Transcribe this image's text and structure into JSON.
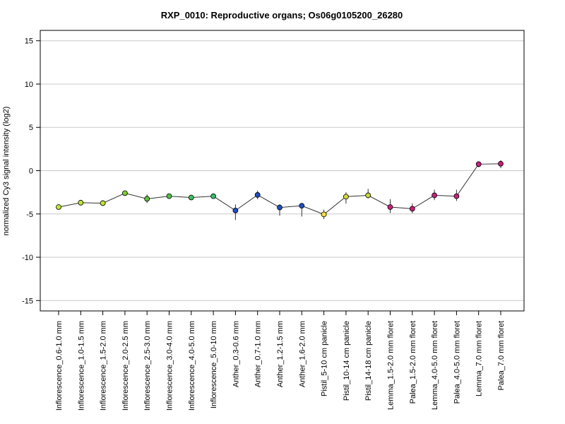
{
  "chart_data": {
    "type": "line",
    "title": "RXP_0010: Reproductive organs; Os06g0105200_26280",
    "xlabel": "",
    "ylabel": "normalized Cy3 signal intensity (log2)",
    "ylim": [
      -16.2,
      16.2
    ],
    "yticks": [
      -15,
      -10,
      -5,
      0,
      5,
      10,
      15
    ],
    "grid": true,
    "categories": [
      "Inflorescence_0.6-1.0 mm",
      "Inflorescence_1.0-1.5 mm",
      "Inflorescence_1.5-2.0 mm",
      "Inflorescence_2.0-2.5 mm",
      "Inflorescence_2.5-3.0 mm",
      "Inflorescence_3.0-4.0 mm",
      "Inflorescence_4.0-5.0 mm",
      "Inflorescence_5.0-10 mm",
      "Anther_0.3-0.6 mm",
      "Anther_0.7-1.0 mm",
      "Anther_1.2-1.5 mm",
      "Anther_1.6-2.0 mm",
      "Pistil_5-10 cm panicle",
      "Pistil_10-14 cm panicle",
      "Pistil_14-18 cm panicle",
      "Lemma_1.5-2.0 mm floret",
      "Palea_1.5-2.0 mm floret",
      "Lemma_4.0-5.0 mm floret",
      "Palea_4.0-5.0 mm floret",
      "Lemma_7.0 mm floret",
      "Palea_7.0 mm floret"
    ],
    "series": [
      {
        "values": [
          -4.2,
          -3.7,
          -3.75,
          -2.6,
          -3.25,
          -2.95,
          -3.1,
          -2.95,
          -4.6,
          -2.8,
          -4.25,
          -4.05,
          -5.05,
          -3.0,
          -2.85,
          -4.2,
          -4.4,
          -2.85,
          -2.95,
          0.75,
          0.8
        ],
        "error_low": [
          -4.2,
          -3.7,
          -3.75,
          -2.6,
          -3.75,
          -2.95,
          -3.1,
          -2.95,
          -5.7,
          -3.3,
          -5.2,
          -5.3,
          -5.6,
          -3.8,
          -3.2,
          -4.9,
          -4.9,
          -3.4,
          -3.5,
          0.4,
          0.3
        ],
        "error_high": [
          -4.2,
          -3.7,
          -3.75,
          -2.6,
          -2.75,
          -2.95,
          -3.1,
          -2.95,
          -3.9,
          -2.3,
          -3.9,
          -3.85,
          -4.5,
          -2.5,
          -2.1,
          -3.3,
          -3.8,
          -2.2,
          -2.2,
          1.0,
          1.2
        ],
        "colors": [
          "#bfe62e",
          "#bfe62e",
          "#bfe62e",
          "#7bd12e",
          "#5fc43a",
          "#4cc048",
          "#3ec05a",
          "#35bd6c",
          "#1f4fbf",
          "#1f4fbf",
          "#1f4fbf",
          "#1f4fbf",
          "#f0e23c",
          "#d8d83a",
          "#c8d63a",
          "#c8207a",
          "#c8207a",
          "#c8207a",
          "#c8207a",
          "#c8207a",
          "#c8207a"
        ]
      }
    ]
  }
}
